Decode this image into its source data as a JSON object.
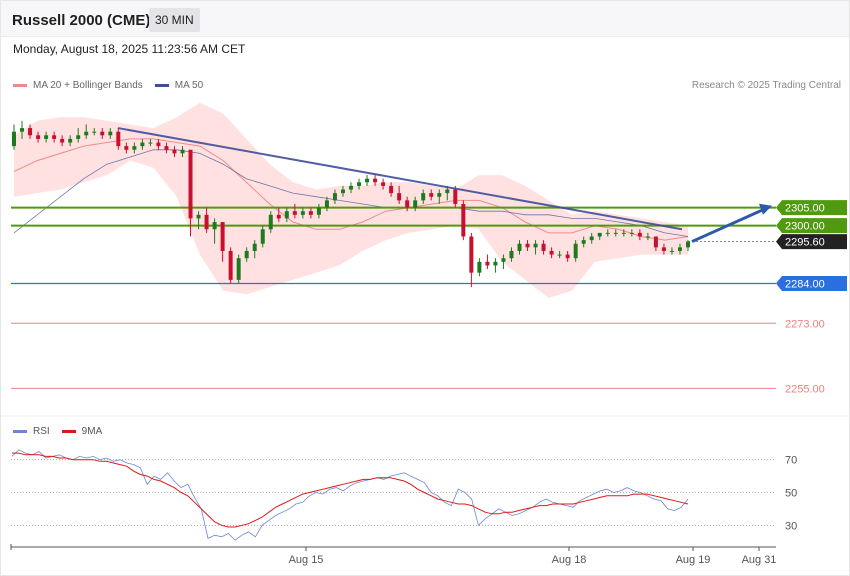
{
  "header": {
    "title": "Russell 2000 (CME)",
    "interval": "30 MIN"
  },
  "datetime": "Monday, August 18, 2025 11:23:56 AM CET",
  "legend": {
    "ma20": "MA 20 + Bollinger Bands",
    "ma50": "MA 50",
    "credit": "Research © 2025 Trading Central"
  },
  "rsi_legend": {
    "rsi": "RSI",
    "ma": "9MA"
  },
  "colors": {
    "up": "#1e7a1e",
    "down": "#c8102e",
    "band": "#ffd9d9",
    "ma20": "#f08a8a",
    "ma50": "#4a5a9a",
    "trend": "#3f4d9a",
    "resistance": "#4f9a0f",
    "support": "#2a6fe0",
    "support_extra": "#f08080",
    "rsi": "#6b87d6",
    "rsi_ma": "#e01818",
    "arrow": "#2c5aa8"
  },
  "chart_data": [
    {
      "type": "candlestick",
      "title": "Russell 2000 (CME)",
      "x_ticks": [
        "Aug 15",
        "Aug 18",
        "Aug 19",
        "Aug 31"
      ],
      "ylim": [
        2249,
        2332
      ],
      "price_levels": [
        {
          "label": "2305.00",
          "value": 2305.0,
          "kind": "resistance"
        },
        {
          "label": "2300.00",
          "value": 2300.0,
          "kind": "resistance"
        },
        {
          "label": "2295.60",
          "value": 2295.6,
          "kind": "last"
        },
        {
          "label": "2284.00",
          "value": 2284.0,
          "kind": "support"
        },
        {
          "label": "2273.00",
          "value": 2273.0,
          "kind": "support_extra"
        },
        {
          "label": "2255.00",
          "value": 2255.0,
          "kind": "support_extra"
        }
      ],
      "candles": [
        [
          2322,
          2328,
          2321,
          2326
        ],
        [
          2326,
          2329,
          2324,
          2327
        ],
        [
          2327,
          2328,
          2324,
          2325
        ],
        [
          2325,
          2326,
          2323,
          2324
        ],
        [
          2324,
          2326,
          2323,
          2325
        ],
        [
          2325,
          2326,
          2323,
          2324
        ],
        [
          2324,
          2325,
          2322,
          2323
        ],
        [
          2323,
          2325,
          2322,
          2324
        ],
        [
          2324,
          2327,
          2323,
          2325
        ],
        [
          2325,
          2328,
          2324,
          2326
        ],
        [
          2326,
          2327,
          2325,
          2326
        ],
        [
          2326,
          2327,
          2324,
          2325
        ],
        [
          2325,
          2327,
          2324,
          2326
        ],
        [
          2326,
          2327,
          2321,
          2322
        ],
        [
          2322,
          2323,
          2320,
          2321
        ],
        [
          2321,
          2323,
          2320,
          2322
        ],
        [
          2322,
          2324,
          2321,
          2323
        ],
        [
          2323,
          2324,
          2322,
          2323
        ],
        [
          2323,
          2324,
          2321,
          2322
        ],
        [
          2322,
          2323,
          2320,
          2321
        ],
        [
          2321,
          2322,
          2319,
          2320
        ],
        [
          2320,
          2322,
          2319,
          2321
        ],
        [
          2321,
          2321,
          2297,
          2302
        ],
        [
          2302,
          2304,
          2299,
          2303
        ],
        [
          2303,
          2305,
          2298,
          2299
        ],
        [
          2299,
          2302,
          2295,
          2301
        ],
        [
          2301,
          2301,
          2290,
          2293
        ],
        [
          2293,
          2294,
          2284,
          2285
        ],
        [
          2285,
          2292,
          2284,
          2291
        ],
        [
          2291,
          2294,
          2290,
          2293
        ],
        [
          2293,
          2296,
          2291,
          2295
        ],
        [
          2295,
          2300,
          2294,
          2299
        ],
        [
          2299,
          2304,
          2298,
          2303
        ],
        [
          2303,
          2305,
          2301,
          2302
        ],
        [
          2302,
          2305,
          2301,
          2304
        ],
        [
          2304,
          2306,
          2302,
          2303
        ],
        [
          2303,
          2305,
          2302,
          2304
        ],
        [
          2304,
          2305,
          2302,
          2303
        ],
        [
          2303,
          2306,
          2302,
          2305
        ],
        [
          2305,
          2308,
          2304,
          2307
        ],
        [
          2307,
          2310,
          2306,
          2309
        ],
        [
          2309,
          2311,
          2308,
          2310
        ],
        [
          2310,
          2312,
          2309,
          2311
        ],
        [
          2311,
          2313,
          2310,
          2312
        ],
        [
          2312,
          2314,
          2311,
          2313
        ],
        [
          2313,
          2314,
          2311,
          2312
        ],
        [
          2312,
          2313,
          2310,
          2311
        ],
        [
          2311,
          2312,
          2308,
          2309
        ],
        [
          2309,
          2311,
          2306,
          2307
        ],
        [
          2307,
          2308,
          2304,
          2305
        ],
        [
          2305,
          2308,
          2304,
          2307
        ],
        [
          2307,
          2310,
          2306,
          2309
        ],
        [
          2309,
          2310,
          2307,
          2308
        ],
        [
          2308,
          2310,
          2306,
          2309
        ],
        [
          2309,
          2311,
          2307,
          2310
        ],
        [
          2310,
          2311,
          2305,
          2306
        ],
        [
          2306,
          2307,
          2296,
          2297
        ],
        [
          2297,
          2298,
          2283,
          2287
        ],
        [
          2287,
          2291,
          2286,
          2290
        ],
        [
          2290,
          2292,
          2288,
          2289
        ],
        [
          2289,
          2291,
          2287,
          2290
        ],
        [
          2290,
          2292,
          2288,
          2291
        ],
        [
          2291,
          2294,
          2290,
          2293
        ],
        [
          2293,
          2296,
          2292,
          2295
        ],
        [
          2295,
          2296,
          2293,
          2294
        ],
        [
          2294,
          2296,
          2292,
          2295
        ],
        [
          2295,
          2296,
          2292,
          2293
        ],
        [
          2293,
          2294,
          2291,
          2292
        ],
        [
          2292,
          2293,
          2291,
          2292
        ],
        [
          2292,
          2293,
          2290,
          2291
        ],
        [
          2291,
          2296,
          2290,
          2295
        ],
        [
          2295,
          2297,
          2294,
          2296
        ],
        [
          2296,
          2298,
          2295,
          2297
        ],
        [
          2297,
          2298,
          2296,
          2298
        ],
        [
          2298,
          2299,
          2297,
          2298
        ],
        [
          2298,
          2299,
          2297,
          2298
        ],
        [
          2298,
          2299,
          2297,
          2298
        ],
        [
          2298,
          2299,
          2297,
          2298
        ],
        [
          2298,
          2299,
          2296,
          2297
        ],
        [
          2297,
          2298,
          2296,
          2297
        ],
        [
          2297,
          2297,
          2293,
          2294
        ],
        [
          2294,
          2295,
          2292,
          2293
        ],
        [
          2293,
          2294,
          2292,
          2293
        ],
        [
          2293,
          2295,
          2292,
          2294
        ],
        [
          2294,
          2296,
          2293,
          2295.6
        ]
      ],
      "indicators": {
        "ma20": [
          2315,
          2318,
          2320,
          2322,
          2323,
          2324,
          2324,
          2323,
          2322,
          2318,
          2312,
          2306,
          2301,
          2299,
          2299,
          2301,
          2304,
          2305,
          2306,
          2307,
          2307,
          2305,
          2301,
          2298,
          2298,
          2300,
          2299,
          2297,
          2296,
          2297
        ],
        "ma50": [
          2298,
          2303,
          2308,
          2313,
          2317,
          2319,
          2321,
          2321,
          2320,
          2317,
          2313,
          2311,
          2309,
          2308,
          2307,
          2306,
          2305,
          2305,
          2305,
          2305,
          2304,
          2304,
          2303,
          2303,
          2302,
          2302,
          2301,
          2300,
          2298,
          2297
        ],
        "bb_upper": [
          2325,
          2329,
          2330,
          2330,
          2329,
          2328,
          2327,
          2330,
          2334,
          2331,
          2324,
          2317,
          2312,
          2310,
          2311,
          2311,
          2312,
          2312,
          2311,
          2310,
          2314,
          2314,
          2311,
          2307,
          2303,
          2304,
          2303,
          2302,
          2301,
          2300
        ],
        "bb_lower": [
          2308,
          2309,
          2310,
          2312,
          2314,
          2318,
          2316,
          2308,
          2292,
          2282,
          2281,
          2283,
          2285,
          2287,
          2289,
          2293,
          2296,
          2298,
          2299,
          2300,
          2299,
          2290,
          2285,
          2280,
          2282,
          2290,
          2291,
          2292,
          2292,
          2292
        ]
      },
      "trendline": {
        "from": 2327,
        "to": 2299
      },
      "projection": {
        "from": 2295.6,
        "to": 2305.5
      }
    },
    {
      "type": "line",
      "title": "RSI",
      "yticks": [
        30,
        50,
        70
      ],
      "ylim": [
        18,
        82
      ],
      "series": [
        {
          "name": "RSI",
          "values": [
            72,
            76,
            74,
            73,
            75,
            71,
            72,
            73,
            71,
            70,
            72,
            71,
            72,
            70,
            71,
            69,
            70,
            68,
            67,
            65,
            55,
            60,
            58,
            62,
            57,
            53,
            55,
            47,
            40,
            22,
            24,
            23,
            25,
            21,
            24,
            26,
            23,
            30,
            33,
            36,
            38,
            40,
            43,
            44,
            48,
            50,
            49,
            52,
            53,
            51,
            54,
            56,
            57,
            58,
            59,
            58,
            60,
            61,
            62,
            60,
            58,
            56,
            50,
            48,
            44,
            42,
            52,
            50,
            46,
            30,
            34,
            37,
            40,
            38,
            36,
            37,
            39,
            41,
            44,
            46,
            44,
            43,
            42,
            41,
            45,
            47,
            49,
            51,
            52,
            50,
            51,
            53,
            51,
            50,
            48,
            46,
            45,
            40,
            39,
            41,
            46
          ]
        },
        {
          "name": "9MA",
          "values": [
            74,
            74,
            73,
            73,
            73,
            72,
            72,
            71,
            71,
            70,
            70,
            70,
            70,
            69,
            69,
            68,
            67,
            66,
            63,
            61,
            60,
            58,
            57,
            55,
            53,
            50,
            48,
            44,
            40,
            36,
            32,
            30,
            29,
            29,
            30,
            31,
            33,
            35,
            38,
            41,
            43,
            45,
            47,
            49,
            50,
            51,
            52,
            53,
            54,
            55,
            56,
            57,
            58,
            58,
            59,
            59,
            59,
            58,
            57,
            55,
            52,
            50,
            48,
            46,
            45,
            44,
            43,
            43,
            42,
            40,
            38,
            37,
            37,
            38,
            38,
            39,
            40,
            41,
            42,
            42,
            43,
            43,
            43,
            43,
            44,
            45,
            46,
            47,
            48,
            48,
            48,
            48,
            49,
            49,
            49,
            48,
            47,
            46,
            45,
            44,
            43
          ]
        }
      ]
    }
  ],
  "axis_labels": {
    "rsi_70": "70",
    "rsi_50": "50",
    "rsi_30": "30"
  }
}
